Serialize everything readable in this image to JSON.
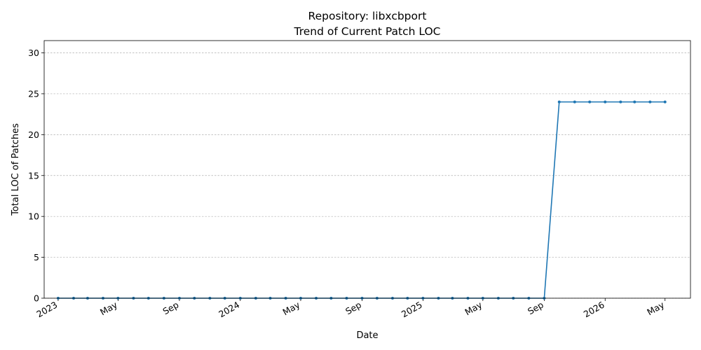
{
  "chart_data": {
    "type": "line",
    "title": "Repository: libxcbport",
    "subtitle": "Trend of Current Patch LOC",
    "xlabel": "Date",
    "ylabel": "Total LOC of Patches",
    "ylim": [
      0,
      31.5
    ],
    "yticks": [
      0,
      5,
      10,
      15,
      20,
      25,
      30
    ],
    "xlim": [
      "2022-12-04",
      "2026-06-21"
    ],
    "xticks": [
      {
        "date": "2023-01-01",
        "label": "2023"
      },
      {
        "date": "2023-05-01",
        "label": "May"
      },
      {
        "date": "2023-09-01",
        "label": "Sep"
      },
      {
        "date": "2024-01-01",
        "label": "2024"
      },
      {
        "date": "2024-05-01",
        "label": "May"
      },
      {
        "date": "2024-09-01",
        "label": "Sep"
      },
      {
        "date": "2025-01-01",
        "label": "2025"
      },
      {
        "date": "2025-05-01",
        "label": "May"
      },
      {
        "date": "2025-09-01",
        "label": "Sep"
      },
      {
        "date": "2026-01-01",
        "label": "2026"
      },
      {
        "date": "2026-05-01",
        "label": "May"
      }
    ],
    "grid": "y-dashed",
    "color": "#1f77b4",
    "series": [
      {
        "x": [
          "2023-01-01",
          "2023-02-01",
          "2023-03-01",
          "2023-04-01",
          "2023-05-01",
          "2023-06-01",
          "2023-07-01",
          "2023-08-01",
          "2023-09-01",
          "2023-10-01",
          "2023-11-01",
          "2023-12-01",
          "2024-01-01",
          "2024-02-01",
          "2024-03-01",
          "2024-04-01",
          "2024-05-01",
          "2024-06-01",
          "2024-07-01",
          "2024-08-01",
          "2024-09-01",
          "2024-10-01",
          "2024-11-01",
          "2024-12-01",
          "2025-01-01",
          "2025-02-01",
          "2025-03-01",
          "2025-04-01",
          "2025-05-01",
          "2025-06-01",
          "2025-07-01",
          "2025-08-01",
          "2025-09-01",
          "2025-10-01",
          "2025-11-01",
          "2025-12-01",
          "2026-01-01",
          "2026-02-01",
          "2026-03-01",
          "2026-04-01",
          "2026-05-01"
        ],
        "y": [
          0,
          0,
          0,
          0,
          0,
          0,
          0,
          0,
          0,
          0,
          0,
          0,
          0,
          0,
          0,
          0,
          0,
          0,
          0,
          0,
          0,
          0,
          0,
          0,
          0,
          0,
          0,
          0,
          0,
          0,
          0,
          0,
          0,
          24,
          24,
          24,
          24,
          24,
          24,
          24,
          24
        ]
      }
    ]
  }
}
